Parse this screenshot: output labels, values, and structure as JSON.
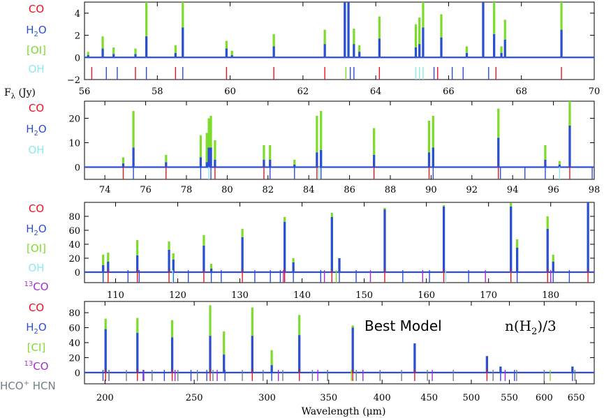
{
  "colors": {
    "CO": "#e8141e",
    "H2O": "#2c4ed6",
    "OI": "#7ddc2b",
    "OH": "#8ee8ee",
    "13CO": "#a52bd6",
    "HCO+ HCN": "#6f7f88",
    "total": "#7ddc2b",
    "model": "#2c4ed6"
  },
  "annotations": {
    "best_model": "Best Model",
    "n_h2": "n(H",
    "n_h2_sub": "2",
    "n_h2_tail": ")/3",
    "fy_label": "F",
    "fy_sub": "λ",
    "fy_tail": " (Jy)",
    "xlabel": "Wavelength (μm)"
  },
  "chart_data": [
    {
      "type": "line",
      "panel": 1,
      "xlim": [
        56,
        70
      ],
      "ylim": [
        -2,
        5
      ],
      "xticks": [
        56,
        58,
        60,
        62,
        64,
        66,
        68,
        70
      ],
      "yticks": [
        -2,
        0,
        2,
        4
      ],
      "legend": [
        {
          "species": "CO",
          "text": "CO",
          "sub": ""
        },
        {
          "species": "H2O",
          "text": "H",
          "sub": "2",
          "tail": "O"
        },
        {
          "species": "OI",
          "text": "[OI]",
          "sub": ""
        },
        {
          "species": "OH",
          "text": "OH",
          "sub": ""
        }
      ],
      "lines": [
        {
          "x": 56.1,
          "total": 0.5,
          "model": 0.2
        },
        {
          "x": 56.5,
          "total": 1.9,
          "model": 0.8
        },
        {
          "x": 56.8,
          "total": 0.9,
          "model": 0.3
        },
        {
          "x": 57.4,
          "total": 0.8,
          "model": 0.3
        },
        {
          "x": 57.7,
          "total": 5.0,
          "model": 1.9
        },
        {
          "x": 58.5,
          "total": 1.1,
          "model": 0.4
        },
        {
          "x": 58.7,
          "total": 5.0,
          "model": 2.7
        },
        {
          "x": 59.9,
          "total": 1.5,
          "model": 0.8
        },
        {
          "x": 60.05,
          "total": 0.6,
          "model": 0.2
        },
        {
          "x": 61.2,
          "total": 2.1,
          "model": 1.0
        },
        {
          "x": 62.6,
          "total": 2.5,
          "model": 1.2
        },
        {
          "x": 63.15,
          "total": 5.0,
          "model": 5.0
        },
        {
          "x": 63.25,
          "total": 5.0,
          "model": 5.0
        },
        {
          "x": 63.4,
          "total": 2.6,
          "model": 1.2
        },
        {
          "x": 63.55,
          "total": 1.1,
          "model": 0.5
        },
        {
          "x": 64.1,
          "total": 3.7,
          "model": 1.7
        },
        {
          "x": 65.1,
          "total": 3.0,
          "model": 0.9
        },
        {
          "x": 65.2,
          "total": 3.6,
          "model": 1.2
        },
        {
          "x": 65.3,
          "total": 5.0,
          "model": 2.7
        },
        {
          "x": 65.8,
          "total": 3.9,
          "model": 1.8
        },
        {
          "x": 66.5,
          "total": 1.0,
          "model": 0.4
        },
        {
          "x": 66.95,
          "total": 5.0,
          "model": 5.0
        },
        {
          "x": 67.25,
          "total": 5.0,
          "model": 2.1
        },
        {
          "x": 67.45,
          "total": 1.0,
          "model": 0.4
        },
        {
          "x": 67.55,
          "total": 3.4,
          "model": 1.6
        },
        {
          "x": 69.1,
          "total": 5.0,
          "model": 2.5
        }
      ],
      "markers": [
        {
          "species": "CO",
          "x": [
            56.2,
            57.4,
            58.5,
            59.9,
            61.2,
            62.6,
            64.1,
            65.7,
            67.3,
            69.1
          ]
        },
        {
          "species": "H2O",
          "x": [
            56.6,
            56.9,
            57.7,
            58.7,
            63.3,
            63.4,
            65.6,
            66.1,
            66.4,
            67.1
          ]
        },
        {
          "species": "OI",
          "x": [
            63.18
          ]
        },
        {
          "species": "OH",
          "x": [
            65.1,
            65.2,
            65.3
          ]
        }
      ]
    },
    {
      "type": "line",
      "panel": 2,
      "xlim": [
        73,
        98
      ],
      "ylim": [
        -5,
        27
      ],
      "xticks": [
        74,
        76,
        78,
        80,
        82,
        84,
        86,
        88,
        90,
        92,
        94,
        96,
        98
      ],
      "yticks": [
        0,
        10,
        20
      ],
      "legend": [
        {
          "species": "CO",
          "text": "CO",
          "sub": ""
        },
        {
          "species": "H2O",
          "text": "H",
          "sub": "2",
          "tail": "O"
        },
        {
          "species": "OH",
          "text": "OH",
          "sub": ""
        }
      ],
      "lines": [
        {
          "x": 74.9,
          "total": 4.0,
          "model": 1.5
        },
        {
          "x": 75.4,
          "total": 23.0,
          "model": 8.0
        },
        {
          "x": 77.0,
          "total": 5.0,
          "model": 2.0
        },
        {
          "x": 78.7,
          "total": 13.0,
          "model": 4.0
        },
        {
          "x": 79.0,
          "total": 14.0,
          "model": 2.0
        },
        {
          "x": 79.1,
          "total": 20.0,
          "model": 8.0
        },
        {
          "x": 79.2,
          "total": 21.0,
          "model": 8.0
        },
        {
          "x": 79.4,
          "total": 11.0,
          "model": 3.0
        },
        {
          "x": 81.8,
          "total": 9.0,
          "model": 3.0
        },
        {
          "x": 82.1,
          "total": 9.0,
          "model": 3.0
        },
        {
          "x": 83.3,
          "total": 3.0,
          "model": 1.0
        },
        {
          "x": 84.4,
          "total": 21.0,
          "model": 6.0
        },
        {
          "x": 84.6,
          "total": 23.0,
          "model": 7.0
        },
        {
          "x": 87.2,
          "total": 16.0,
          "model": 5.0
        },
        {
          "x": 89.9,
          "total": 19.0,
          "model": 6.0
        },
        {
          "x": 90.1,
          "total": 21.0,
          "model": 8.0
        },
        {
          "x": 93.3,
          "total": 24.0,
          "model": 12.0
        },
        {
          "x": 95.6,
          "total": 9.0,
          "model": 3.0
        },
        {
          "x": 96.3,
          "total": 2.5,
          "model": 1.0
        },
        {
          "x": 96.8,
          "total": 27.0,
          "model": 17.0
        }
      ],
      "markers": [
        {
          "species": "CO",
          "x": [
            74.9,
            77.0,
            79.4,
            81.8,
            84.4,
            87.2,
            89.9,
            93.3,
            96.8
          ]
        },
        {
          "species": "H2O",
          "x": [
            75.4,
            78.7,
            79.2,
            82.1,
            83.3,
            84.6,
            90.1,
            93.4,
            94.6,
            95.6,
            97.9
          ]
        },
        {
          "species": "OH",
          "x": [
            79.1,
            84.5,
            96.3
          ]
        }
      ]
    },
    {
      "type": "line",
      "panel": 3,
      "xlim": [
        105,
        187
      ],
      "ylim": [
        -15,
        100
      ],
      "xticks": [
        110,
        120,
        130,
        140,
        150,
        160,
        170,
        180
      ],
      "yticks": [
        0,
        20,
        40,
        60,
        80
      ],
      "legend": [
        {
          "species": "CO",
          "text": "CO",
          "sub": ""
        },
        {
          "species": "H2O",
          "text": "H",
          "sub": "2",
          "tail": "O"
        },
        {
          "species": "OI",
          "text": "[OI]",
          "sub": ""
        },
        {
          "species": "OH",
          "text": "OH",
          "sub": ""
        },
        {
          "species": "13CO",
          "text": "CO",
          "sup": "13"
        }
      ],
      "lines": [
        {
          "x": 108.0,
          "total": 25,
          "model": 10
        },
        {
          "x": 108.8,
          "total": 28,
          "model": 15
        },
        {
          "x": 113.5,
          "total": 46,
          "model": 24
        },
        {
          "x": 118.6,
          "total": 44,
          "model": 32
        },
        {
          "x": 119.3,
          "total": 27,
          "model": 18
        },
        {
          "x": 124.2,
          "total": 53,
          "model": 38
        },
        {
          "x": 125.4,
          "total": 12,
          "model": 5
        },
        {
          "x": 130.4,
          "total": 62,
          "model": 50
        },
        {
          "x": 137.2,
          "total": 79,
          "model": 72
        },
        {
          "x": 138.6,
          "total": 20,
          "model": 14
        },
        {
          "x": 144.8,
          "total": 85,
          "model": 79
        },
        {
          "x": 146.0,
          "total": 20,
          "model": 20
        },
        {
          "x": 153.3,
          "total": 92,
          "model": 90
        },
        {
          "x": 162.8,
          "total": 96,
          "model": 94
        },
        {
          "x": 173.6,
          "total": 99,
          "model": 94
        },
        {
          "x": 174.6,
          "total": 47,
          "model": 35
        },
        {
          "x": 179.5,
          "total": 80,
          "model": 62
        },
        {
          "x": 180.4,
          "total": 25,
          "model": 15
        },
        {
          "x": 186.0,
          "total": 100,
          "model": 100
        }
      ],
      "markers": [
        {
          "species": "CO",
          "x": [
            108.8,
            113.5,
            118.6,
            124.2,
            130.4,
            137.2,
            144.8,
            153.3,
            162.8,
            173.6,
            179.5,
            186.0
          ]
        },
        {
          "species": "H2O",
          "x": [
            108.0,
            112.0,
            113.8,
            119.3,
            121.7,
            125.4,
            127.0,
            132.4,
            134.9,
            136.5,
            138.6,
            143.0,
            146.0,
            148.7,
            156.2,
            160.5,
            166.8,
            174.6,
            180.4,
            183.0
          ]
        },
        {
          "species": "OI",
          "x": [
            145.5
          ]
        },
        {
          "species": "OH",
          "x": [
            119.2,
            163.1
          ]
        },
        {
          "species": "13CO",
          "x": [
            137.0,
            143.6,
            151.0,
            159.4,
            169.5,
            180.0
          ]
        }
      ]
    },
    {
      "type": "line",
      "panel": 4,
      "xlim": [
        190,
        680
      ],
      "xscale": "log",
      "ylim": [
        -15,
        95
      ],
      "xticks": [
        200,
        250,
        300,
        350,
        400,
        450,
        500,
        550,
        600,
        650
      ],
      "yticks": [
        0,
        20,
        40,
        60,
        80
      ],
      "legend": [
        {
          "species": "CO",
          "text": "CO",
          "sub": ""
        },
        {
          "species": "H2O",
          "text": "H",
          "sub": "2",
          "tail": "O"
        },
        {
          "species": "OI",
          "text": "[CI]",
          "sub": ""
        },
        {
          "species": "13CO",
          "text": "CO",
          "sup": "13"
        }
      ],
      "hcn_label": {
        "text": "HCO",
        "sup": "+",
        "tail": " HCN"
      },
      "lines": [
        {
          "x": 200.3,
          "total": 72,
          "model": 58
        },
        {
          "x": 216.9,
          "total": 73,
          "model": 53
        },
        {
          "x": 236.6,
          "total": 70,
          "model": 47
        },
        {
          "x": 260.2,
          "total": 90,
          "model": 49
        },
        {
          "x": 269.3,
          "total": 55,
          "model": 24
        },
        {
          "x": 289.1,
          "total": 87,
          "model": 49
        },
        {
          "x": 303.5,
          "total": 30,
          "model": 10
        },
        {
          "x": 325.2,
          "total": 77,
          "model": 50
        },
        {
          "x": 371.7,
          "total": 63,
          "model": 60
        },
        {
          "x": 434.0,
          "total": 38,
          "model": 39
        },
        {
          "x": 520.0,
          "total": 22,
          "model": 22
        },
        {
          "x": 538.0,
          "total": 8,
          "model": 8
        },
        {
          "x": 644.0,
          "total": 8,
          "model": 8
        }
      ],
      "markers": [
        {
          "species": "CO",
          "x": [
            200.3,
            216.9,
            236.6,
            260.2,
            289.1,
            325.2,
            371.7,
            434.0,
            520.0
          ]
        },
        {
          "species": "H2O",
          "x": [
            199.0,
            202.0,
            220.0,
            232.0,
            248.0,
            258.0,
            270.0,
            303.5,
            349.0,
            398.0,
            538.0,
            557.0,
            644.0
          ]
        },
        {
          "species": "OI",
          "x": [
            370.4,
            609.1
          ]
        },
        {
          "species": "13CO",
          "x": [
            220.4,
            238.3,
            264.8,
            308.6,
            340.6,
            381.3,
            453.5,
            544.2
          ]
        },
        {
          "species": "HCO+ HCN",
          "x": [
            202.0,
            211.0,
            225.0,
            240.0,
            252.0,
            262.0,
            282.0,
            297.0,
            312.0,
            336.0,
            349.0,
            375.0,
            398.0,
            420.0,
            448.0,
            478.0,
            528.0,
            560.0,
            600.0,
            648.0
          ]
        }
      ]
    }
  ]
}
